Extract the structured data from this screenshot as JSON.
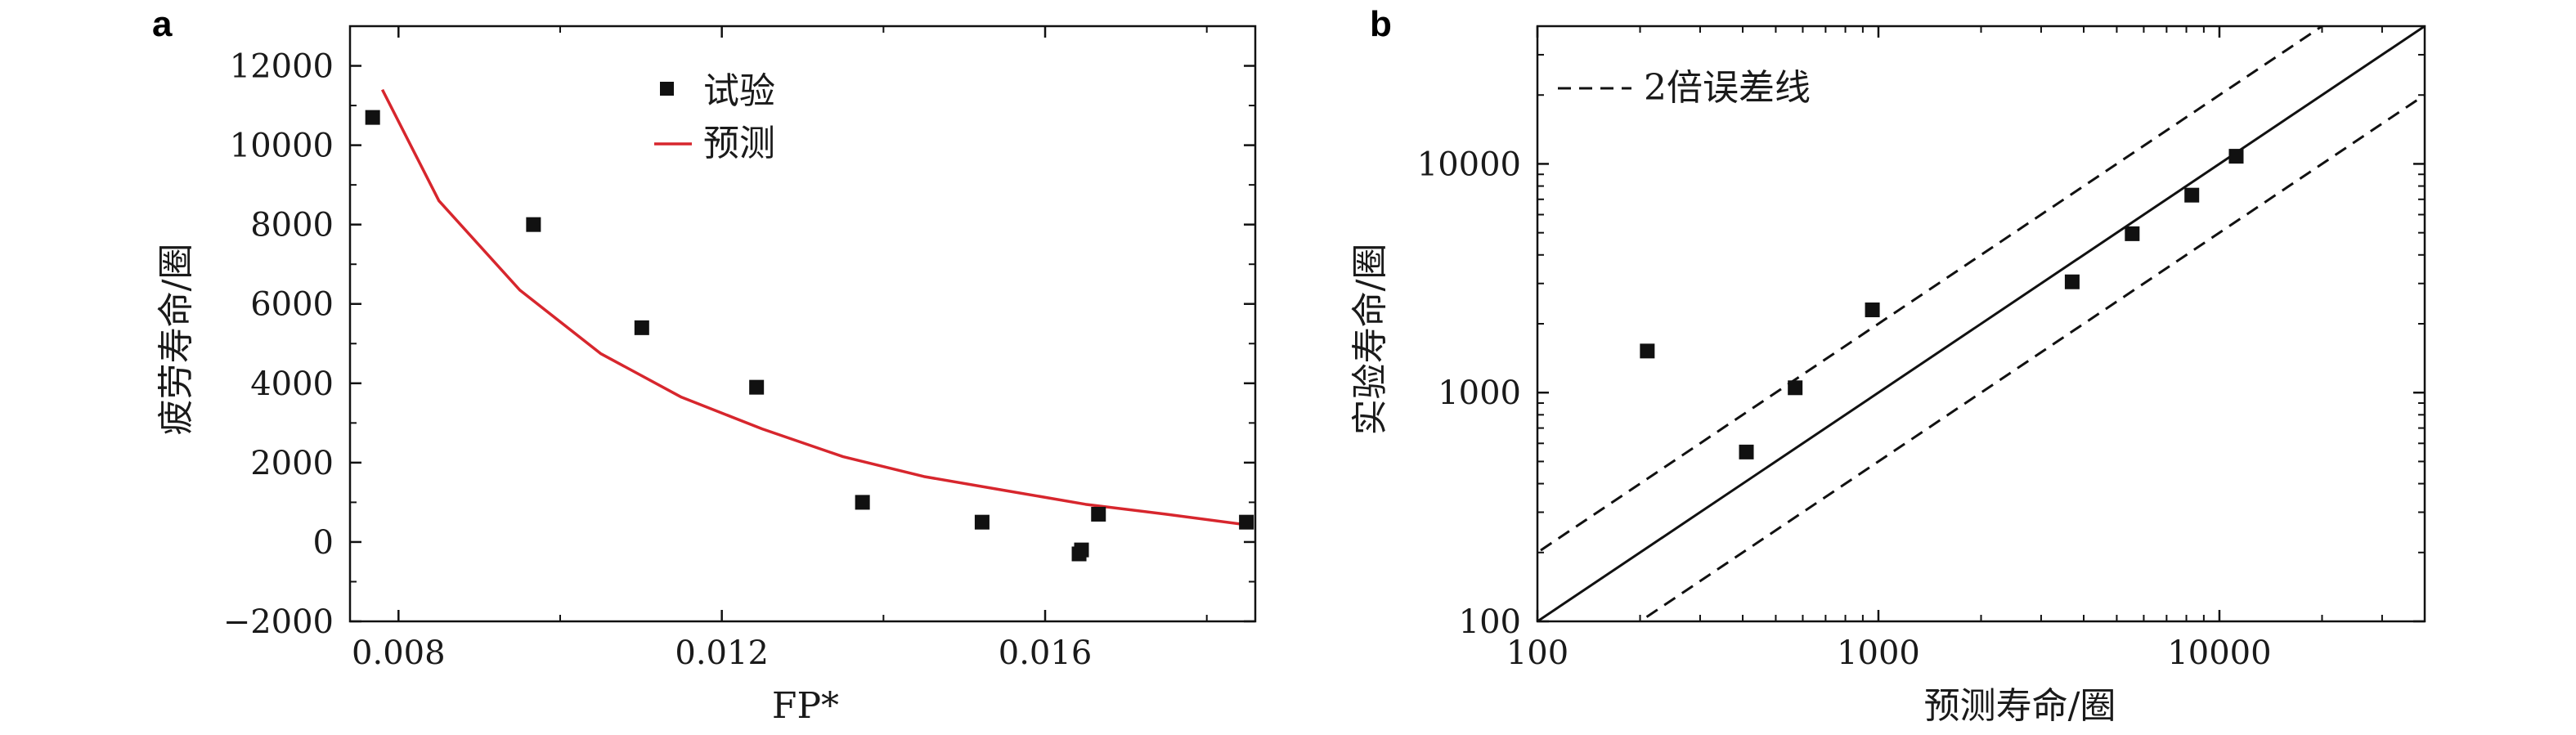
{
  "chart_data": [
    {
      "panel": "a",
      "type": "scatter",
      "xlabel": "FP*",
      "ylabel": "疲劳寿命/圈",
      "xlim": [
        0.0074,
        0.0186
      ],
      "ylim": [
        -2000,
        13000
      ],
      "x_ticks": [
        0.008,
        0.012,
        0.016
      ],
      "x_tick_labels": [
        "0.008",
        "0.012",
        "0.016"
      ],
      "y_ticks": [
        -2000,
        0,
        2000,
        4000,
        6000,
        8000,
        10000,
        12000
      ],
      "y_tick_labels": [
        "−2000",
        "0",
        "2000",
        "4000",
        "6000",
        "8000",
        "10000",
        "12000"
      ],
      "legend_position": "top-center",
      "series": [
        {
          "name": "试验",
          "kind": "scatter",
          "color": "#111111",
          "x": [
            0.00768,
            0.00967,
            0.01101,
            0.01243,
            0.01374,
            0.01522,
            0.01642,
            0.01645,
            0.01666,
            0.01849
          ],
          "y": [
            10700,
            8000,
            5400,
            3900,
            1000,
            500,
            -300,
            -200,
            700,
            500
          ]
        },
        {
          "name": "预测",
          "kind": "line",
          "color": "#d7262d",
          "x": [
            0.0078,
            0.0085,
            0.0095,
            0.0105,
            0.0115,
            0.0125,
            0.0135,
            0.0145,
            0.0155,
            0.0165,
            0.0175,
            0.0185
          ],
          "y": [
            11400,
            8600,
            6350,
            4750,
            3650,
            2850,
            2150,
            1650,
            1300,
            950,
            700,
            430
          ]
        }
      ]
    },
    {
      "panel": "b",
      "type": "scatter",
      "xlabel": "预测寿命/圈",
      "ylabel": "实验寿命/圈",
      "xscale": "log",
      "yscale": "log",
      "xlim": [
        100,
        40000
      ],
      "ylim": [
        100,
        40000
      ],
      "x_ticks": [
        100,
        1000,
        10000
      ],
      "x_tick_labels": [
        "100",
        "1000",
        "10000"
      ],
      "y_ticks": [
        100,
        1000,
        10000
      ],
      "y_tick_labels": [
        "100",
        "1000",
        "10000"
      ],
      "legend_position": "top-left",
      "legend": [
        "2倍误差线"
      ],
      "reference_lines": [
        {
          "style": "solid",
          "factor": 1
        },
        {
          "style": "dashed",
          "factor": 2
        },
        {
          "style": "dashed",
          "factor": 0.5
        }
      ],
      "series": [
        {
          "kind": "scatter",
          "color": "#111111",
          "x": [
            210,
            410,
            570,
            960,
            3700,
            5550,
            8300,
            11200
          ],
          "y": [
            1520,
            550,
            1050,
            2300,
            3050,
            4950,
            7300,
            10800
          ]
        }
      ]
    }
  ]
}
